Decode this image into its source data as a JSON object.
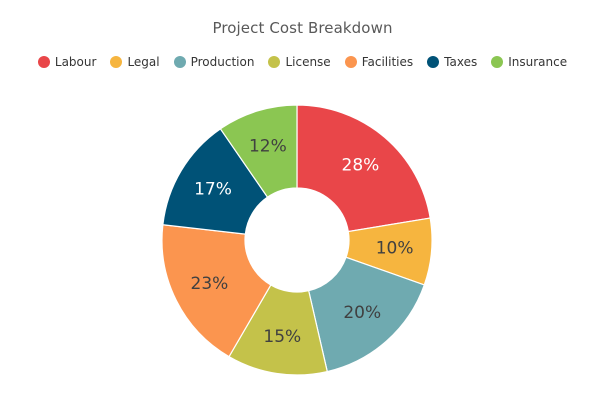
{
  "chart_data": {
    "type": "pie",
    "donut": true,
    "title": "Project Cost Breakdown",
    "legend_position": "top",
    "label_suffix": "%",
    "slices": [
      {
        "name": "Labour",
        "value": 28,
        "color": "#e94649",
        "label_color": "#ffffff"
      },
      {
        "name": "Legal",
        "value": 10,
        "color": "#f6b53f",
        "label_color": "#404040"
      },
      {
        "name": "Production",
        "value": 20,
        "color": "#6fAAB0",
        "label_color": "#404040"
      },
      {
        "name": "License",
        "value": 15,
        "color": "#C4C24A",
        "label_color": "#404040"
      },
      {
        "name": "Facilities",
        "value": 23,
        "color": "#FB954F",
        "label_color": "#404040"
      },
      {
        "name": "Taxes",
        "value": 17,
        "color": "#005277",
        "label_color": "#ffffff"
      },
      {
        "name": "Insurance",
        "value": 12,
        "color": "#8BC652",
        "label_color": "#404040"
      }
    ]
  }
}
